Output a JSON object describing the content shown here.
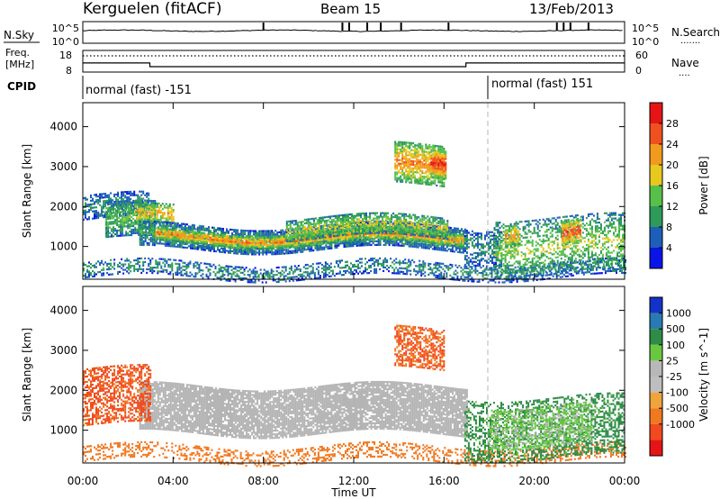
{
  "header": {
    "station": "Kerguelen (fitACF)",
    "beam": "Beam 15",
    "date": "13/Feb/2013"
  },
  "noise_panel": {
    "left_label": "N.Sky",
    "left_ticks": [
      "10^5",
      "10^0"
    ],
    "right_ticks": [
      "10^5",
      "10^0"
    ],
    "right_label": "N.Search",
    "right_legend": "......."
  },
  "freq_panel": {
    "left_label_line1": "Freq.",
    "left_label_line2": "[MHz]",
    "left_ticks": [
      "18",
      "8"
    ],
    "right_ticks": [
      "60",
      "0"
    ],
    "right_label": "Nave",
    "right_legend": "....",
    "freq_values_mhz": [
      {
        "t": 0.0,
        "f": 12.2
      },
      {
        "t": 2.97,
        "f": 12.2
      },
      {
        "t": 2.97,
        "f": 10.5
      },
      {
        "t": 16.97,
        "f": 10.5
      },
      {
        "t": 16.97,
        "f": 12.2
      },
      {
        "t": 24.0,
        "f": 12.2
      }
    ],
    "nave_dotted_level": 45
  },
  "cpid": {
    "label": "CPID",
    "programs": [
      {
        "name": "normal (fast) -151",
        "start": 0.0,
        "end": 18.0
      },
      {
        "name": "normal (fast) 151",
        "start": 18.0,
        "end": 24.0
      }
    ]
  },
  "time_axis": {
    "title": "Time UT",
    "ticks": [
      "00:00",
      "04:00",
      "08:00",
      "12:00",
      "16:00",
      "20:00",
      "00:00"
    ],
    "tick_hours": [
      0,
      4,
      8,
      12,
      16,
      20,
      24
    ],
    "xlim": [
      0,
      24
    ]
  },
  "colors": {
    "power_scale": [
      "#0a14e6",
      "#1c5fb8",
      "#2e9a5a",
      "#58c04a",
      "#e6c81e",
      "#f29a1e",
      "#f0501e",
      "#e61414"
    ],
    "velocity_scale": [
      "#1432c8",
      "#2a7ab2",
      "#2e8c46",
      "#6ac840",
      "#b8b8b8",
      "#bebebe",
      "#f0a43c",
      "#f07820",
      "#f04a1e",
      "#e61414"
    ],
    "ground_scatter": "#b4b4b4",
    "cpid_marker": "#b4b4b4"
  },
  "chart_data": [
    {
      "type": "heatmap",
      "name": "power",
      "ylabel": "Slant Range [km]",
      "yticks": [
        "1000",
        "2000",
        "3000",
        "4000"
      ],
      "ylim": [
        180,
        4600
      ],
      "xlim": [
        0,
        24
      ],
      "colorbar_label": "Power [dB]",
      "colorbar_ticks": [
        "4",
        "8",
        "12",
        "16",
        "20",
        "24",
        "28"
      ],
      "colorbar_range": [
        0,
        32
      ],
      "features": [
        {
          "desc": "main F-region band",
          "hours": [
            1.0,
            17.0
          ],
          "range_km": [
            1000,
            1900
          ],
          "peak_db": 26
        },
        {
          "desc": "early cluster",
          "hours": [
            0.0,
            3.0
          ],
          "range_km": [
            1000,
            2500
          ],
          "peak_db": 16
        },
        {
          "desc": "high-range patch",
          "hours": [
            13.8,
            16.0
          ],
          "range_km": [
            2500,
            3500
          ],
          "peak_db": 28
        },
        {
          "desc": "near-range echoes",
          "hours": [
            0.0,
            24.0
          ],
          "range_km": [
            200,
            600
          ],
          "peak_db": 12
        },
        {
          "desc": "late scattered echoes",
          "hours": [
            17.0,
            24.0
          ],
          "range_km": [
            300,
            1700
          ],
          "peak_db": 22
        }
      ],
      "bands": [
        {
          "h": [
            0.0,
            2.9
          ],
          "r": [
            1650,
            2250
          ],
          "level": 10,
          "density": 0.55
        },
        {
          "h": [
            1.0,
            3.2
          ],
          "r": [
            1150,
            2050
          ],
          "level": 14,
          "density": 0.75
        },
        {
          "h": [
            2.3,
            4.0
          ],
          "r": [
            1450,
            1950
          ],
          "level": 22,
          "density": 0.7
        },
        {
          "h": [
            2.5,
            17.0
          ],
          "r": [
            900,
            1500
          ],
          "level": 12,
          "density": 0.8
        },
        {
          "h": [
            3.2,
            16.8
          ],
          "r": [
            1050,
            1350
          ],
          "level": 24,
          "density": 0.88
        },
        {
          "h": [
            9.0,
            16.2
          ],
          "r": [
            1200,
            1700
          ],
          "level": 18,
          "density": 0.7
        },
        {
          "h": [
            13.8,
            16.0
          ],
          "r": [
            2500,
            3500
          ],
          "level": 24,
          "density": 0.75
        },
        {
          "h": [
            15.4,
            16.1
          ],
          "r": [
            2700,
            3400
          ],
          "level": 30,
          "density": 0.9
        },
        {
          "h": [
            0.0,
            24.0
          ],
          "r": [
            200,
            600
          ],
          "level": 10,
          "density": 0.45
        },
        {
          "h": [
            16.9,
            18.5
          ],
          "r": [
            600,
            1500
          ],
          "level": 10,
          "density": 0.5
        },
        {
          "h": [
            18.2,
            24.0
          ],
          "r": [
            300,
            1700
          ],
          "level": 16,
          "density": 0.45
        },
        {
          "h": [
            21.2,
            22.0
          ],
          "r": [
            1000,
            1600
          ],
          "level": 28,
          "density": 0.8
        },
        {
          "h": [
            18.7,
            19.3
          ],
          "r": [
            1100,
            1600
          ],
          "level": 24,
          "density": 0.7
        }
      ]
    },
    {
      "type": "heatmap",
      "name": "velocity",
      "ylabel": "Slant Range [km]",
      "yticks": [
        "1000",
        "2000",
        "3000",
        "4000"
      ],
      "ylim": [
        180,
        4600
      ],
      "xlim": [
        0,
        24
      ],
      "colorbar_label": "Velocity [m s^-1]",
      "colorbar_ticks": [
        "1000",
        "500",
        "100",
        "25",
        "-25",
        "-100",
        "-500",
        "-1000"
      ],
      "features": [
        {
          "desc": "ground scatter band",
          "hours": [
            2.5,
            17.0
          ],
          "range_km": [
            900,
            2200
          ],
          "value": "grey"
        },
        {
          "desc": "early flow",
          "hours": [
            0.0,
            3.0
          ],
          "range_km": [
            1000,
            2500
          ],
          "velocity_ms": -500
        },
        {
          "desc": "high-range patch",
          "hours": [
            13.8,
            16.0
          ],
          "range_km": [
            2500,
            3500
          ],
          "velocity_ms": -500
        },
        {
          "desc": "late echoes",
          "hours": [
            17.0,
            24.0
          ],
          "range_km": [
            300,
            1800
          ],
          "velocity_ms": 100
        }
      ],
      "bands": [
        {
          "h": [
            2.5,
            17.0
          ],
          "r": [
            900,
            2100
          ],
          "level": "gs",
          "density": 0.85
        },
        {
          "h": [
            0.0,
            3.0
          ],
          "r": [
            1100,
            2500
          ],
          "level": -600,
          "density": 0.55
        },
        {
          "h": [
            0.0,
            24.0
          ],
          "r": [
            200,
            600
          ],
          "level": -200,
          "density": 0.35
        },
        {
          "h": [
            13.8,
            16.0
          ],
          "r": [
            2500,
            3500
          ],
          "level": -500,
          "density": 0.6
        },
        {
          "h": [
            16.9,
            24.0
          ],
          "r": [
            300,
            1800
          ],
          "level": 150,
          "density": 0.45
        },
        {
          "h": [
            18.0,
            22.5
          ],
          "r": [
            600,
            1600
          ],
          "level": 30,
          "density": 0.45
        }
      ]
    }
  ]
}
